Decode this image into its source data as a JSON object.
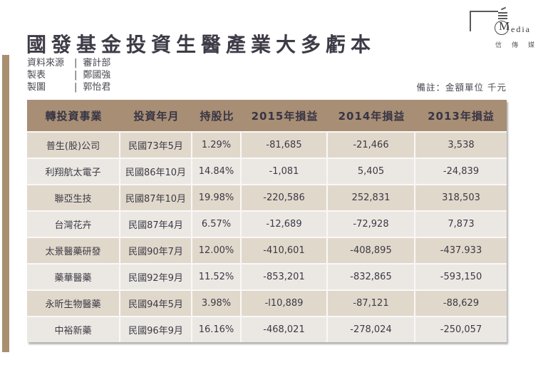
{
  "page": {
    "title": "國發基金投資生醫產業大多虧本",
    "note": "備註：金額單位 千元"
  },
  "credits": [
    {
      "label": "資料來源",
      "sep": "|",
      "value": "審計部"
    },
    {
      "label": "製表",
      "sep": "|",
      "value": "鄭國強"
    },
    {
      "label": "製圖",
      "sep": "|",
      "value": "郭怡君"
    }
  ],
  "logo": {
    "monogram_letter": "M",
    "brand_rest": "edia",
    "subtext": "信傳媒"
  },
  "chart_data": {
    "type": "table",
    "title": "國發基金投資生醫產業大多虧本",
    "columns": [
      "轉投資事業",
      "投資年月",
      "持股比",
      "2015年損益",
      "2014年損益",
      "2013年損益"
    ],
    "rows": [
      [
        "普生(股)公司",
        "民國73年5月",
        "1.29%",
        "-81,685",
        "-21,466",
        "3,538"
      ],
      [
        "利翔航太電子",
        "民國86年10月",
        "14.84%",
        "-1,081",
        "5,405",
        "-24,839"
      ],
      [
        "聯亞生技",
        "民國87年10月",
        "19.98%",
        "-220,586",
        "252,831",
        "318,503"
      ],
      [
        "台灣花卉",
        "民國87年4月",
        "6.57%",
        "-12,689",
        "-72,928",
        "7,873"
      ],
      [
        "太景醫藥研發",
        "民國90年7月",
        "12.00%",
        "-410,601",
        "-408,895",
        "-437.933"
      ],
      [
        "藥華醫藥",
        "民國92年9月",
        "11.52%",
        "-853,201",
        "-832,865",
        "-593,150"
      ],
      [
        "永昕生物醫藥",
        "民國94年5月",
        "3.98%",
        "-l10,889",
        "-87,121",
        "-88,629"
      ],
      [
        "中裕新藥",
        "民國96年9月",
        "16.16%",
        "-468,021",
        "-278,024",
        "-250,057"
      ]
    ],
    "unit_note": "金額單位 千元",
    "source": "審計部"
  },
  "colors": {
    "header_bg": "#a78e75",
    "row_odd": "#e1d8cc",
    "row_even": "#ebe8e4",
    "accent_bar": "#a98e70",
    "title_text": "#3e3b47"
  }
}
